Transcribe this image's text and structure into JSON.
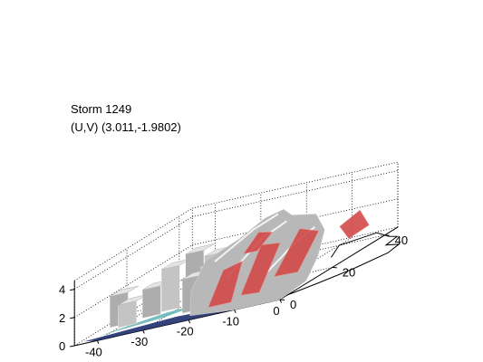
{
  "chart_data": {
    "type": "surface",
    "title": [
      "Storm 1249",
      "(U,V) (3.011,-1.9802)"
    ],
    "xlabel": "",
    "ylabel": "",
    "zlabel": "",
    "x_ticks": [
      -40,
      -30,
      -20,
      -10,
      0
    ],
    "y_ticks": [
      0,
      20,
      40
    ],
    "z_ticks": [
      0,
      2,
      4
    ],
    "xlim": [
      -45,
      0
    ],
    "ylim": [
      0,
      45
    ],
    "zlim": [
      0,
      4.6
    ],
    "grid": true,
    "colors": {
      "surface_gray": "#b8b8b8",
      "surface_red": "#d24a4a",
      "base_navy": "#1f2f6e",
      "base_teal": "#5fb4b4"
    }
  }
}
